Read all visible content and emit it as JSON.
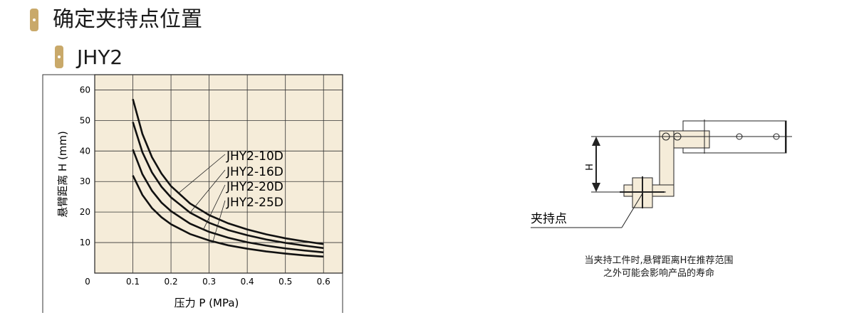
{
  "section_title": "确定夹持点位置",
  "model_title": "JHY2",
  "chart_data": {
    "type": "line",
    "title": "",
    "xlabel": "压力 P (MPa)",
    "ylabel": "悬臂距离 H (mm)",
    "xlim": [
      0,
      0.65
    ],
    "ylim": [
      0,
      65
    ],
    "xticks": [
      "0",
      "0.1",
      "0.2",
      "0.3",
      "0.4",
      "0.5",
      "0.6"
    ],
    "yticks": [
      "10",
      "20",
      "30",
      "40",
      "50",
      "60"
    ],
    "grid": true,
    "background": "#f5ecd9",
    "x": [
      0.1,
      0.125,
      0.15,
      0.175,
      0.2,
      0.25,
      0.3,
      0.35,
      0.4,
      0.45,
      0.5,
      0.55,
      0.6
    ],
    "series": [
      {
        "name": "JHY2-10D",
        "values": [
          57,
          45.6,
          38,
          32.6,
          28.5,
          22.8,
          19,
          16.3,
          14.3,
          12.7,
          11.4,
          10.4,
          9.5
        ]
      },
      {
        "name": "JHY2-16D",
        "values": [
          49.5,
          39.6,
          33,
          28.3,
          24.8,
          19.8,
          16.5,
          14.1,
          12.4,
          11,
          9.9,
          9,
          8.2
        ]
      },
      {
        "name": "JHY2-20D",
        "values": [
          40.5,
          32.4,
          27,
          23.1,
          20.3,
          16.2,
          13.5,
          11.6,
          10.1,
          9,
          8.1,
          7.4,
          6.8
        ]
      },
      {
        "name": "JHY2-25D",
        "values": [
          32,
          25.6,
          21.3,
          18.3,
          16,
          12.8,
          10.7,
          9.1,
          8,
          7.1,
          6.4,
          5.8,
          5.4
        ]
      }
    ]
  },
  "diagram": {
    "dimension_label": "H",
    "clamp_point_label": "夹持点",
    "note_line1": "当夹持工件时,悬臂距离H在推荐范围",
    "note_line2": "之外可能会影响产品的寿命"
  }
}
